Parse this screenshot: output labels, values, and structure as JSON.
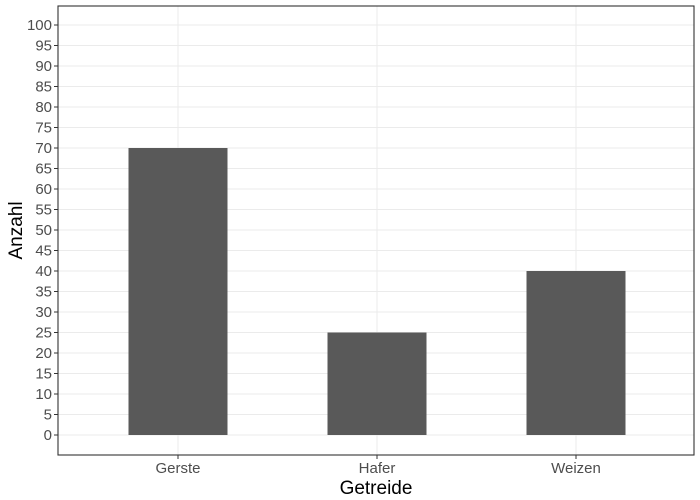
{
  "chart_data": {
    "type": "bar",
    "categories": [
      "Gerste",
      "Hafer",
      "Weizen"
    ],
    "values": [
      70,
      25,
      40
    ],
    "xlabel": "Getreide",
    "ylabel": "Anzahl",
    "ylim": [
      0,
      100
    ],
    "ytick_step": 5,
    "grid": true,
    "legend": "none",
    "colors": {
      "bar": "#595959",
      "grid": "#ebebeb",
      "panel_border": "#333333",
      "tick_text": "#4d4d4d",
      "title_text": "#000000",
      "background": "#ffffff"
    }
  }
}
